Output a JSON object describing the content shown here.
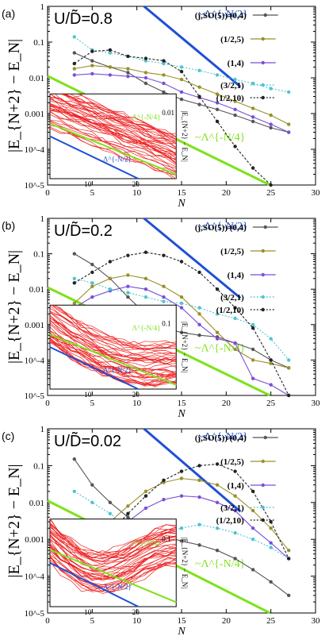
{
  "chart_data": [
    {
      "type": "line",
      "panel_label": "(a)",
      "title": "U/D̃=0.8",
      "xlabel": "N",
      "ylabel": "|E_{N+2} − E_N|",
      "xlim": [
        0,
        30
      ],
      "ylim_log10": [
        -5,
        0
      ],
      "x_ticks": [
        "0",
        "5",
        "10",
        "15",
        "20",
        "25",
        "30"
      ],
      "y_ticks": [
        "10^-5",
        "10^-4",
        "0.001",
        "0.01",
        "0.1",
        "1"
      ],
      "legend_header": "(j,SO(5))=",
      "legend_groups": [
        "(0,4)",
        "(1/2,5)",
        "(1,4)",
        "(3/2,1)",
        "(1/2,10)"
      ],
      "annotations": {
        "blue": "~Λ^{-N/2}",
        "green": "~Λ^{-N/4}"
      },
      "inset": {
        "xlabel_ticks": [
          "10",
          "20"
        ],
        "ylabel": "|E_{N+2} − E_N|",
        "blue": "Λ^{-N/2}",
        "green": "Λ^{-N/4}",
        "ytick": "0.01"
      },
      "series": [
        {
          "name": "(0,4)",
          "x": [
            3,
            5,
            7,
            9,
            11,
            13,
            15,
            17,
            19,
            21,
            23,
            25,
            27
          ],
          "y": [
            0.05,
            0.03,
            0.02,
            0.014,
            0.007,
            0.004,
            0.0025,
            0.0018,
            0.0013,
            0.0009,
            0.0006,
            0.0004,
            0.0003
          ]
        },
        {
          "name": "(1/2,5)",
          "x": [
            3,
            5,
            7,
            9,
            11,
            13,
            15,
            17,
            19,
            21,
            23,
            25,
            27
          ],
          "y": [
            0.018,
            0.022,
            0.02,
            0.018,
            0.014,
            0.012,
            0.009,
            0.0055,
            0.0035,
            0.0022,
            0.0014,
            0.0009,
            0.0005
          ]
        },
        {
          "name": "(1,4)",
          "x": [
            3,
            5,
            7,
            9,
            11,
            13,
            15,
            17,
            19,
            21,
            23,
            25,
            27
          ],
          "y": [
            0.012,
            0.013,
            0.012,
            0.011,
            0.01,
            0.007,
            0.004,
            0.0028,
            0.002,
            0.0013,
            0.0008,
            0.0005,
            0.0003
          ]
        },
        {
          "name": "(3/2,1)",
          "x": [
            3,
            5,
            7,
            9,
            11,
            13,
            15,
            17,
            19,
            21,
            23,
            25,
            27
          ],
          "y": [
            0.14,
            0.06,
            0.05,
            0.04,
            0.03,
            0.025,
            0.02,
            0.016,
            0.012,
            0.009,
            0.007,
            0.005,
            0.004
          ]
        },
        {
          "name": "(1/2,10)",
          "x": [
            3,
            5,
            7,
            9,
            11,
            13,
            15,
            17,
            19,
            21,
            23,
            25,
            27
          ],
          "y": [
            0.025,
            0.055,
            0.06,
            0.04,
            0.035,
            0.03,
            0.015,
            0.003,
            0.0006,
            0.00012,
            3e-05,
            1e-05,
            3e-06
          ]
        }
      ]
    },
    {
      "type": "line",
      "panel_label": "(b)",
      "title": "U/D̃=0.2",
      "xlabel": "N",
      "ylabel": "|E_{N+2} − E_N|",
      "xlim": [
        0,
        30
      ],
      "ylim_log10": [
        -5,
        0
      ],
      "x_ticks": [
        "0",
        "5",
        "10",
        "15",
        "20",
        "25",
        "30"
      ],
      "y_ticks": [
        "10^-5",
        "10^-4",
        "0.001",
        "0.01",
        "0.1",
        "1"
      ],
      "legend_header": "(j,SO(5))=",
      "legend_groups": [
        "(0,4)",
        "(1/2,5)",
        "(1,4)",
        "(3/2,1)",
        "(1/2,10)"
      ],
      "annotations": {
        "blue": "~Λ^{-N/2}",
        "green": "~Λ^{-N/4}"
      },
      "inset": {
        "xlabel_ticks": [
          "10",
          "20"
        ],
        "ylabel": "|E_{N+2} − E_N|",
        "blue": "Λ^{-N/2}",
        "green": "Λ^{-N/4}",
        "ytick": "0.1"
      },
      "series": [
        {
          "name": "(0,4)",
          "x": [
            3,
            5,
            7,
            9,
            11,
            13,
            15,
            17,
            19,
            21,
            23,
            25,
            27
          ],
          "y": [
            0.1,
            0.05,
            0.02,
            0.006,
            0.002,
            0.0008,
            0.0006,
            0.0005,
            0.00045,
            0.0003,
            0.0002,
            0.0001,
            6e-05
          ]
        },
        {
          "name": "(1/2,5)",
          "x": [
            3,
            5,
            7,
            9,
            11,
            13,
            15,
            17,
            19,
            21,
            23,
            25,
            27
          ],
          "y": [
            0.004,
            0.012,
            0.02,
            0.025,
            0.02,
            0.012,
            0.006,
            0.002,
            0.0006,
            0.0002,
            0.0001,
            8e-05,
            6e-05
          ]
        },
        {
          "name": "(1,4)",
          "x": [
            3,
            5,
            7,
            9,
            11,
            13,
            15,
            17,
            19,
            21,
            23,
            25,
            27
          ],
          "y": [
            0.003,
            0.006,
            0.009,
            0.012,
            0.01,
            0.006,
            0.003,
            0.001,
            0.0004,
            0.0003,
            3e-05,
            2e-05,
            1e-05
          ]
        },
        {
          "name": "(3/2,1)",
          "x": [
            3,
            5,
            7,
            9,
            11,
            13,
            15,
            17,
            19,
            21,
            23,
            25,
            27
          ],
          "y": [
            0.02,
            0.015,
            0.01,
            0.008,
            0.006,
            0.0045,
            0.004,
            0.003,
            0.002,
            0.0015,
            0.001,
            0.0004,
            0.0001
          ]
        },
        {
          "name": "(1/2,10)",
          "x": [
            3,
            5,
            7,
            9,
            11,
            13,
            15,
            17,
            19,
            21,
            23,
            25,
            27
          ],
          "y": [
            0.015,
            0.03,
            0.06,
            0.09,
            0.11,
            0.09,
            0.06,
            0.03,
            0.01,
            0.003,
            0.0008,
            0.0001,
            1e-05
          ]
        }
      ]
    },
    {
      "type": "line",
      "panel_label": "(c)",
      "title": "U/D̃=0.02",
      "xlabel": "N",
      "ylabel": "|E_{N+2} − E_N|",
      "xlim": [
        0,
        30
      ],
      "ylim_log10": [
        -5,
        0
      ],
      "x_ticks": [
        "0",
        "5",
        "10",
        "15",
        "20",
        "25",
        "30"
      ],
      "y_ticks": [
        "10^-5",
        "10^-4",
        "0.001",
        "0.01",
        "0.1",
        "1"
      ],
      "legend_header": "(j,SO(5))=",
      "legend_groups": [
        "(0,4)",
        "(1/2,5)",
        "(1,4)",
        "(3/2,1)",
        "(1/2,10)"
      ],
      "annotations": {
        "blue": "~Λ^{-N/2}",
        "green": "~Λ^{-N/4}"
      },
      "inset": {
        "xlabel_ticks": [
          "10",
          "20"
        ],
        "ylabel": "|E_{N+2} − E_N|",
        "blue": "Λ^{-N/2}",
        "green": "Λ^{-N/4}",
        "ytick": "0.1"
      },
      "series": [
        {
          "name": "(0,4)",
          "x": [
            3,
            5,
            7,
            9,
            11,
            13,
            15,
            17,
            19,
            21,
            23,
            25,
            27
          ],
          "y": [
            0.15,
            0.03,
            0.01,
            0.004,
            0.002,
            0.0012,
            0.0009,
            0.0007,
            0.0005,
            0.0003,
            0.00015,
            7e-05,
            3e-05
          ]
        },
        {
          "name": "(1/2,5)",
          "x": [
            3,
            5,
            7,
            9,
            11,
            13,
            15,
            17,
            19,
            21,
            23,
            25,
            27
          ],
          "y": [
            0.0003,
            0.001,
            0.003,
            0.008,
            0.02,
            0.035,
            0.045,
            0.04,
            0.03,
            0.015,
            0.006,
            0.002,
            0.0005
          ]
        },
        {
          "name": "(1,4)",
          "x": [
            3,
            5,
            7,
            9,
            11,
            13,
            15,
            17,
            19,
            21,
            23,
            25,
            27
          ],
          "y": [
            0.0002,
            0.0005,
            0.0012,
            0.003,
            0.007,
            0.012,
            0.015,
            0.014,
            0.01,
            0.006,
            0.002,
            0.0008,
            0.0003
          ]
        },
        {
          "name": "(3/2,1)",
          "x": [
            3,
            5,
            7,
            9,
            11,
            13,
            15,
            17,
            19,
            21,
            23,
            25,
            27
          ],
          "y": [
            0.02,
            0.01,
            0.005,
            0.002,
            0.001,
            0.0015,
            0.002,
            0.0025,
            0.002,
            0.0015,
            0.001,
            0.0006,
            0.0003
          ]
        },
        {
          "name": "(1/2,10)",
          "x": [
            3,
            5,
            7,
            9,
            11,
            13,
            15,
            17,
            19,
            21,
            23,
            25,
            27
          ],
          "y": [
            0.0001,
            0.0004,
            0.0015,
            0.005,
            0.015,
            0.04,
            0.07,
            0.1,
            0.11,
            0.07,
            0.02,
            0.003,
            0.0003
          ]
        }
      ]
    }
  ],
  "colors": {
    "blue_line": "#1f4fd6",
    "green_line": "#7ee21a",
    "inset_red": "#ee2222",
    "s_04": "#555555",
    "s_125": "#9a8f2a",
    "s_14": "#7a4fd8",
    "s_321": "#4fc4d0",
    "s_1210": "#222222"
  }
}
